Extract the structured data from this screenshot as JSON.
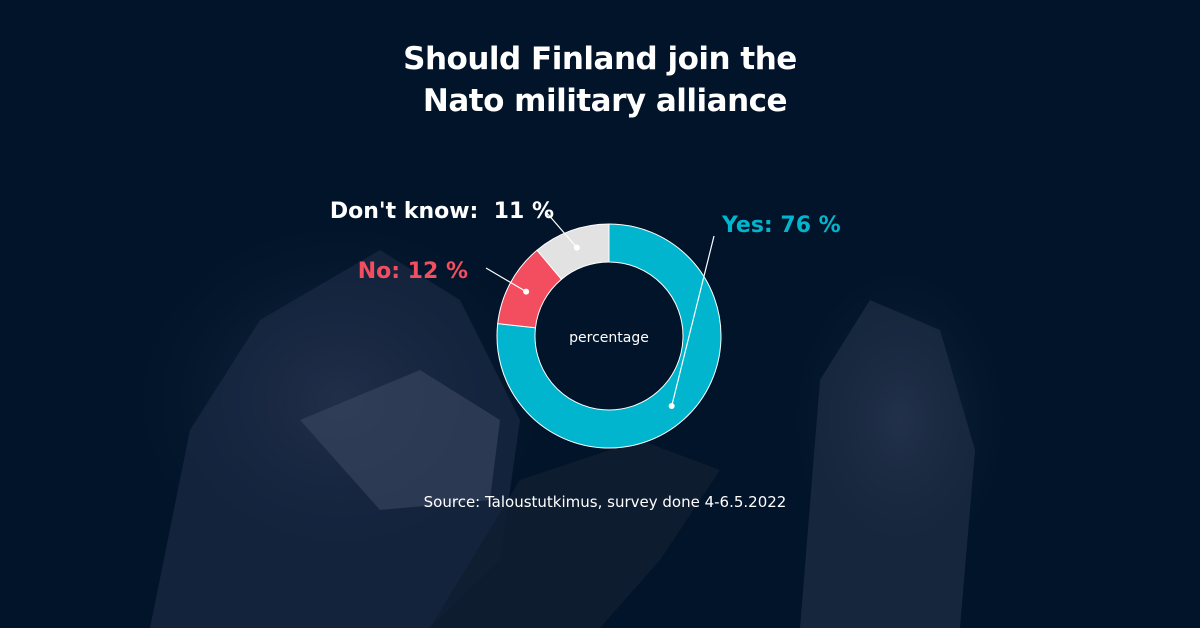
{
  "title_lines": [
    "Should Finland join the",
    "Nato military alliance"
  ],
  "source": "Source: Taloustutkimus, survey done 4-6.5.2022",
  "chart_data": {
    "type": "pie",
    "variant": "donut",
    "title": "Should Finland join the Nato military alliance",
    "center_label": "percentage",
    "slices": [
      {
        "label": "Yes",
        "display": "Yes: 76 %",
        "value": 76,
        "color": "#00b5cd"
      },
      {
        "label": "No",
        "display": "No: 12 %",
        "value": 12,
        "color": "#f24e5f"
      },
      {
        "label": "Don't know",
        "display": "Don't know:  11 %",
        "value": 11,
        "color": "#e2e2e2"
      }
    ],
    "legend": "none",
    "source": "Source: Taloustutkimus, survey done 4-6.5.2022"
  }
}
